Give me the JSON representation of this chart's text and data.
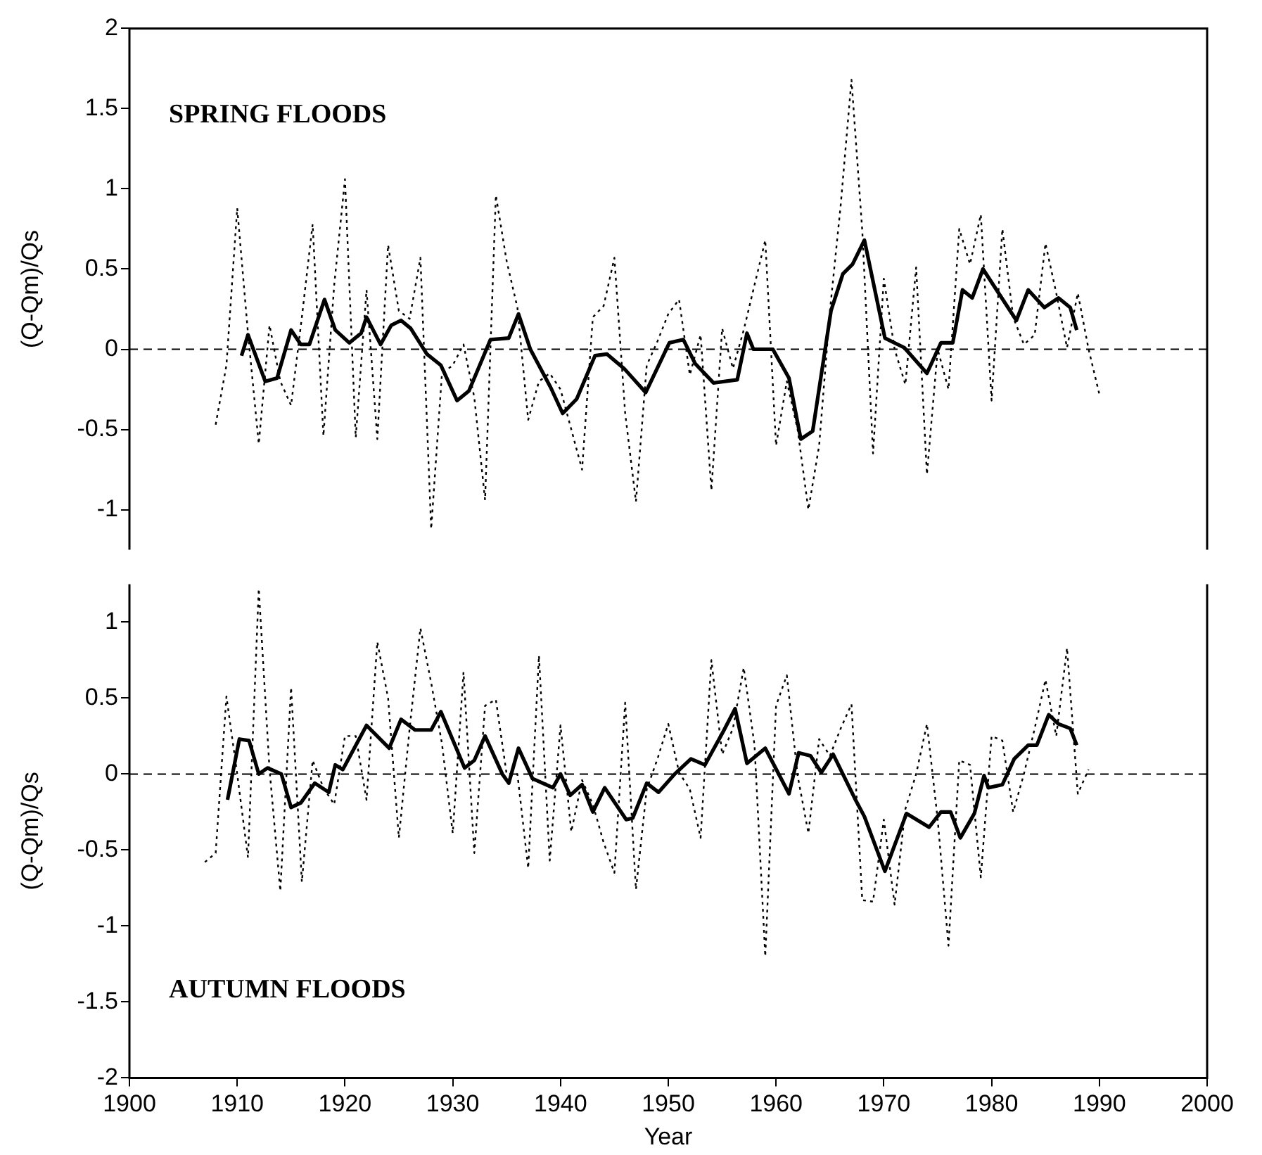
{
  "chart_data": [
    {
      "type": "line",
      "annotations": [
        "SPRING FLOODS"
      ],
      "ylabel": "(Q-Qm)/Qs",
      "xlim": [
        1900,
        2000
      ],
      "xticks": [
        1900,
        1910,
        1920,
        1930,
        1940,
        1950,
        1960,
        1970,
        1980,
        1990,
        2000
      ],
      "ylim": [
        -1.25,
        2
      ],
      "yticks": [
        -1,
        -0.5,
        0,
        0.5,
        1,
        1.5,
        2
      ],
      "tick_labels": "y",
      "grid": false,
      "legend": false,
      "marker": "none",
      "ref_lines": [
        {
          "axis": "y",
          "value": 0,
          "line_style": "dashed",
          "color": "#000000"
        }
      ],
      "series": [
        {
          "color": "#000000",
          "line_style": "dotted",
          "x": [
            1908,
            1909,
            1910,
            1911,
            1912,
            1913,
            1914,
            1915,
            1916,
            1917,
            1918,
            1919,
            1920,
            1921,
            1922,
            1923,
            1924,
            1925,
            1926,
            1927,
            1928,
            1929,
            1930,
            1931,
            1932,
            1933,
            1934,
            1935,
            1936,
            1937,
            1938,
            1939,
            1940,
            1941,
            1942,
            1943,
            1944,
            1945,
            1946,
            1947,
            1948,
            1949,
            1950,
            1951,
            1952,
            1953,
            1954,
            1955,
            1956,
            1957,
            1958,
            1959,
            1960,
            1961,
            1962,
            1963,
            1964,
            1965,
            1966,
            1967,
            1968,
            1969,
            1970,
            1971,
            1972,
            1973,
            1974,
            1975,
            1976,
            1977,
            1978,
            1979,
            1980,
            1981,
            1982,
            1983,
            1984,
            1985,
            1986,
            1987,
            1988,
            1989,
            1990
          ],
          "values": [
            -0.47,
            -0.1,
            0.88,
            0.1,
            -0.59,
            0.15,
            -0.2,
            -0.35,
            0.2,
            0.78,
            -0.54,
            0.4,
            1.06,
            -0.55,
            0.37,
            -0.56,
            0.65,
            0.24,
            0.19,
            0.57,
            -1.12,
            -0.15,
            -0.1,
            0.03,
            -0.3,
            -0.94,
            0.96,
            0.55,
            0.26,
            -0.44,
            -0.2,
            -0.15,
            -0.25,
            -0.5,
            -0.75,
            0.2,
            0.27,
            0.57,
            -0.4,
            -0.95,
            -0.1,
            0.05,
            0.22,
            0.31,
            -0.16,
            0.09,
            -0.88,
            0.13,
            -0.12,
            0.12,
            0.4,
            0.68,
            -0.6,
            -0.2,
            -0.5,
            -1.0,
            -0.6,
            0.24,
            0.9,
            1.68,
            0.74,
            -0.65,
            0.44,
            0.0,
            -0.22,
            0.51,
            -0.78,
            0.0,
            -0.25,
            0.75,
            0.53,
            0.84,
            -0.32,
            0.75,
            0.2,
            0.03,
            0.09,
            0.66,
            0.35,
            0.01,
            0.35,
            0.0,
            -0.28
          ]
        },
        {
          "color": "#000000",
          "line_style": "solid",
          "x": [
            1910.4,
            1911,
            1912.6,
            1913.7,
            1915,
            1915.9,
            1916.7,
            1918.1,
            1919.1,
            1920.4,
            1921.5,
            1922,
            1923.3,
            1924.3,
            1925.2,
            1926.1,
            1927.6,
            1928.9,
            1930.4,
            1931.5,
            1933.5,
            1935.2,
            1936.1,
            1937.2,
            1939.1,
            1940.2,
            1941.5,
            1943.2,
            1944.3,
            1945.9,
            1947.9,
            1950.1,
            1951.4,
            1952.5,
            1954.2,
            1956.4,
            1957.3,
            1957.9,
            1959.7,
            1961.2,
            1962.3,
            1963.4,
            1965.1,
            1966.2,
            1967.1,
            1968.2,
            1970.1,
            1971.9,
            1974,
            1975.3,
            1976.4,
            1977.3,
            1978.2,
            1979.2,
            1982.3,
            1983.4,
            1984.9,
            1986.2,
            1987.3,
            1987.9
          ],
          "values": [
            -0.04,
            0.09,
            -0.2,
            -0.18,
            0.12,
            0.03,
            0.03,
            0.31,
            0.12,
            0.04,
            0.1,
            0.2,
            0.03,
            0.15,
            0.18,
            0.13,
            -0.03,
            -0.1,
            -0.32,
            -0.26,
            0.06,
            0.07,
            0.22,
            0.0,
            -0.24,
            -0.4,
            -0.31,
            -0.04,
            -0.03,
            -0.12,
            -0.27,
            0.04,
            0.06,
            -0.09,
            -0.21,
            -0.19,
            0.1,
            0.0,
            0.0,
            -0.18,
            -0.56,
            -0.51,
            0.24,
            0.47,
            0.53,
            0.68,
            0.07,
            0.01,
            -0.15,
            0.04,
            0.04,
            0.37,
            0.32,
            0.5,
            0.18,
            0.37,
            0.26,
            0.32,
            0.26,
            0.12
          ]
        }
      ]
    },
    {
      "type": "line",
      "annotations": [
        "AUTUMN FLOODS"
      ],
      "xlabel": "Year",
      "ylabel": "(Q-Qm)/Qs",
      "xlim": [
        1900,
        2000
      ],
      "xticks": [
        1900,
        1910,
        1920,
        1930,
        1940,
        1950,
        1960,
        1970,
        1980,
        1990,
        2000
      ],
      "ylim": [
        -2,
        1.25
      ],
      "yticks": [
        -2,
        -1.5,
        -1,
        -0.5,
        0,
        0.5,
        1
      ],
      "grid": false,
      "legend": false,
      "marker": "none",
      "ref_lines": [
        {
          "axis": "y",
          "value": 0,
          "line_style": "dashed",
          "color": "#000000"
        }
      ],
      "series": [
        {
          "color": "#000000",
          "line_style": "dotted",
          "x": [
            1907,
            1908,
            1909,
            1910,
            1911,
            1912,
            1913,
            1914,
            1915,
            1916,
            1917,
            1918,
            1919,
            1920,
            1921,
            1922,
            1923,
            1924,
            1925,
            1926,
            1927,
            1928,
            1929,
            1930,
            1931,
            1932,
            1933,
            1934,
            1935,
            1936,
            1937,
            1938,
            1939,
            1940,
            1941,
            1942,
            1943,
            1944,
            1945,
            1946,
            1947,
            1948,
            1949,
            1950,
            1951,
            1952,
            1953,
            1954,
            1955,
            1956,
            1957,
            1958,
            1959,
            1960,
            1961,
            1962,
            1963,
            1964,
            1965,
            1966,
            1967,
            1968,
            1969,
            1970,
            1971,
            1972,
            1973,
            1974,
            1975,
            1976,
            1977,
            1978,
            1979,
            1980,
            1981,
            1982,
            1983,
            1984,
            1985,
            1986,
            1987,
            1988,
            1989
          ],
          "values": [
            -0.58,
            -0.52,
            0.51,
            0.0,
            -0.55,
            1.22,
            0.03,
            -0.77,
            0.57,
            -0.71,
            0.09,
            -0.09,
            -0.2,
            0.25,
            0.25,
            -0.17,
            0.87,
            0.5,
            -0.42,
            0.3,
            0.96,
            0.6,
            0.2,
            -0.39,
            0.67,
            -0.52,
            0.45,
            0.49,
            0.0,
            0.0,
            -0.62,
            0.78,
            -0.57,
            0.32,
            -0.38,
            -0.04,
            -0.2,
            -0.45,
            -0.65,
            0.47,
            -0.76,
            -0.1,
            0.1,
            0.33,
            0.01,
            -0.1,
            -0.42,
            0.75,
            0.13,
            0.3,
            0.7,
            0.19,
            -1.2,
            0.45,
            0.65,
            -0.01,
            -0.39,
            0.23,
            0.12,
            0.3,
            0.46,
            -0.83,
            -0.84,
            -0.3,
            -0.86,
            -0.23,
            0.0,
            0.33,
            -0.3,
            -1.13,
            0.09,
            0.06,
            -0.68,
            0.25,
            0.22,
            -0.25,
            0.0,
            0.3,
            0.62,
            0.25,
            0.83,
            -0.13,
            0.03
          ]
        },
        {
          "color": "#000000",
          "line_style": "solid",
          "x": [
            1909.1,
            1910.2,
            1911.1,
            1912,
            1912.8,
            1914.1,
            1915,
            1915.9,
            1917.2,
            1918.5,
            1919.1,
            1919.8,
            1922,
            1924.1,
            1925.2,
            1926.5,
            1928,
            1928.9,
            1931.1,
            1932,
            1933,
            1934.6,
            1935.2,
            1936.1,
            1937.4,
            1939.3,
            1940,
            1940.9,
            1942,
            1943,
            1944.1,
            1946.1,
            1946.7,
            1948,
            1949.1,
            1950.6,
            1952.1,
            1953.4,
            1955.1,
            1956.2,
            1957.3,
            1959,
            1961.2,
            1962.1,
            1963.2,
            1964.2,
            1965.3,
            1967.3,
            1968.2,
            1970.1,
            1972.1,
            1974.2,
            1975.3,
            1976.2,
            1977.1,
            1978.4,
            1979.3,
            1979.7,
            1981,
            1982.1,
            1983.4,
            1984.2,
            1985.3,
            1986.2,
            1987.3,
            1987.9
          ],
          "values": [
            -0.17,
            0.23,
            0.22,
            0.0,
            0.04,
            0.0,
            -0.22,
            -0.19,
            -0.06,
            -0.12,
            0.06,
            0.03,
            0.32,
            0.17,
            0.36,
            0.29,
            0.29,
            0.41,
            0.04,
            0.09,
            0.25,
            0.0,
            -0.06,
            0.17,
            -0.03,
            -0.09,
            0.0,
            -0.14,
            -0.07,
            -0.25,
            -0.09,
            -0.3,
            -0.29,
            -0.06,
            -0.12,
            0.0,
            0.1,
            0.06,
            0.28,
            0.43,
            0.07,
            0.17,
            -0.13,
            0.14,
            0.12,
            0.01,
            0.13,
            -0.16,
            -0.28,
            -0.64,
            -0.26,
            -0.35,
            -0.25,
            -0.25,
            -0.42,
            -0.26,
            -0.01,
            -0.09,
            -0.07,
            0.1,
            0.19,
            0.19,
            0.39,
            0.33,
            0.3,
            0.19
          ]
        }
      ]
    }
  ]
}
